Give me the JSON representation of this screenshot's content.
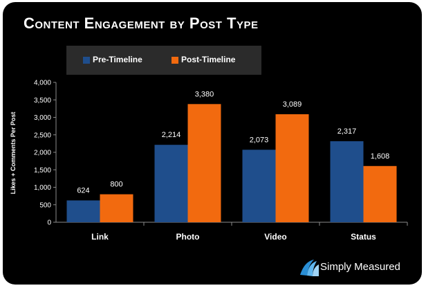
{
  "chart_data": {
    "type": "bar",
    "title": "Content Engagement by Post Type",
    "ylabel": "Likes + Comments Per Post",
    "xlabel": "",
    "ylim": [
      0,
      4000
    ],
    "yticks": [
      "4,000",
      "3,500",
      "3,000",
      "2,500",
      "2,000",
      "1,500",
      "1,000",
      "500",
      "0"
    ],
    "categories": [
      "Link",
      "Photo",
      "Video",
      "Status"
    ],
    "series": [
      {
        "name": "Pre-Timeline",
        "color": "#1f4e8c",
        "values": [
          624,
          2214,
          2073,
          2317
        ],
        "labels": [
          "624",
          "2,214",
          "2,073",
          "2,317"
        ]
      },
      {
        "name": "Post-Timeline",
        "color": "#f26a0f",
        "values": [
          800,
          3380,
          3089,
          1608
        ],
        "labels": [
          "800",
          "3,380",
          "3,089",
          "1,608"
        ]
      }
    ],
    "legend_position": "top-left",
    "grid": false
  },
  "brand": {
    "name": "Simply Measured",
    "icon": "simply-measured-logo-icon"
  }
}
